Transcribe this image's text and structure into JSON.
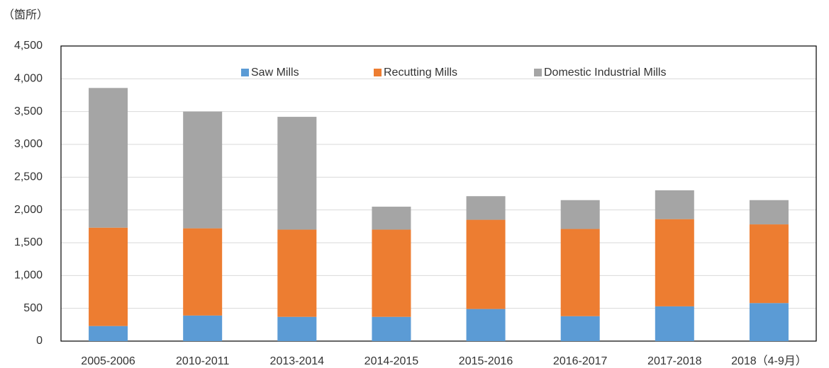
{
  "chart_data": {
    "type": "stacked_bar",
    "y_axis_label": "（箇所）",
    "categories": [
      "2005-2006",
      "2010-2011",
      "2013-2014",
      "2014-2015",
      "2015-2016",
      "2016-2017",
      "2017-2018",
      "2018（4-9月）"
    ],
    "series": [
      {
        "name": "Saw Mills",
        "color": "#5b9bd5",
        "values": [
          230,
          390,
          370,
          370,
          490,
          380,
          530,
          580
        ]
      },
      {
        "name": "Recutting Mills",
        "color": "#ed7d31",
        "values": [
          1500,
          1330,
          1330,
          1330,
          1360,
          1330,
          1330,
          1200
        ]
      },
      {
        "name": "Domestic Industrial Mills",
        "color": "#a5a5a5",
        "values": [
          2130,
          1780,
          1720,
          350,
          360,
          440,
          440,
          370
        ]
      }
    ],
    "ylim": [
      0,
      4500
    ],
    "yticks": [
      0,
      500,
      {
        "value": 1000,
        "label": "1,000"
      },
      {
        "value": 1500,
        "label": "1,500"
      },
      {
        "value": 2000,
        "label": "2,000"
      },
      {
        "value": 2500,
        "label": "2,500"
      },
      {
        "value": 3000,
        "label": "3,000"
      },
      {
        "value": 3500,
        "label": "3,500"
      },
      {
        "value": 4000,
        "label": "4,000"
      },
      {
        "value": 4500,
        "label": "4,500"
      }
    ],
    "grid": true,
    "legend": "top"
  }
}
